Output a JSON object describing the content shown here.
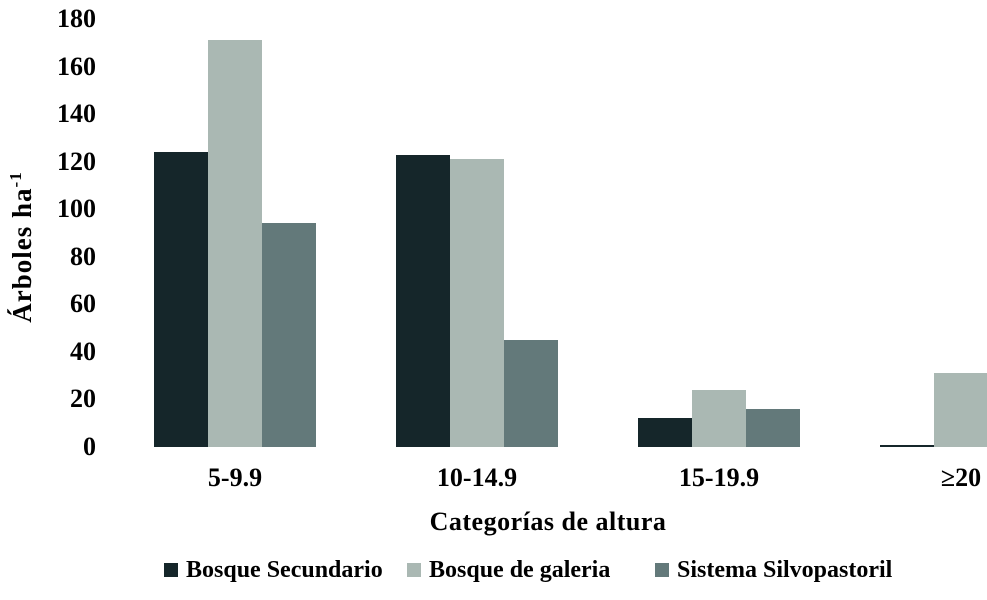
{
  "chart_data": {
    "type": "bar",
    "title": "",
    "xlabel": "Categorías de altura",
    "ylabel": "Árboles ha⁻¹",
    "ylabel_main": "Árboles ha",
    "ylabel_sup": "-1",
    "categories": [
      "5-9.9",
      "10-14.9",
      "15-19.9",
      "≥20"
    ],
    "series": [
      {
        "name": "Bosque Secundario",
        "color": "#15262a",
        "values": [
          124,
          123,
          12,
          1
        ]
      },
      {
        "name": "Bosque de galeria",
        "color": "#aab8b3",
        "values": [
          171,
          121,
          24,
          31
        ]
      },
      {
        "name": "Sistema Silvopastoril",
        "color": "#63797a",
        "values": [
          94,
          45,
          16,
          null
        ]
      }
    ],
    "ylim": [
      0,
      180
    ],
    "yticks": [
      0,
      20,
      40,
      60,
      80,
      100,
      120,
      140,
      160,
      180
    ],
    "grid": false,
    "legend_position": "bottom",
    "notes": "rightmost group partially clipped by right edge of image; Sistema Silvopastoril value for ≥20 not visible"
  }
}
